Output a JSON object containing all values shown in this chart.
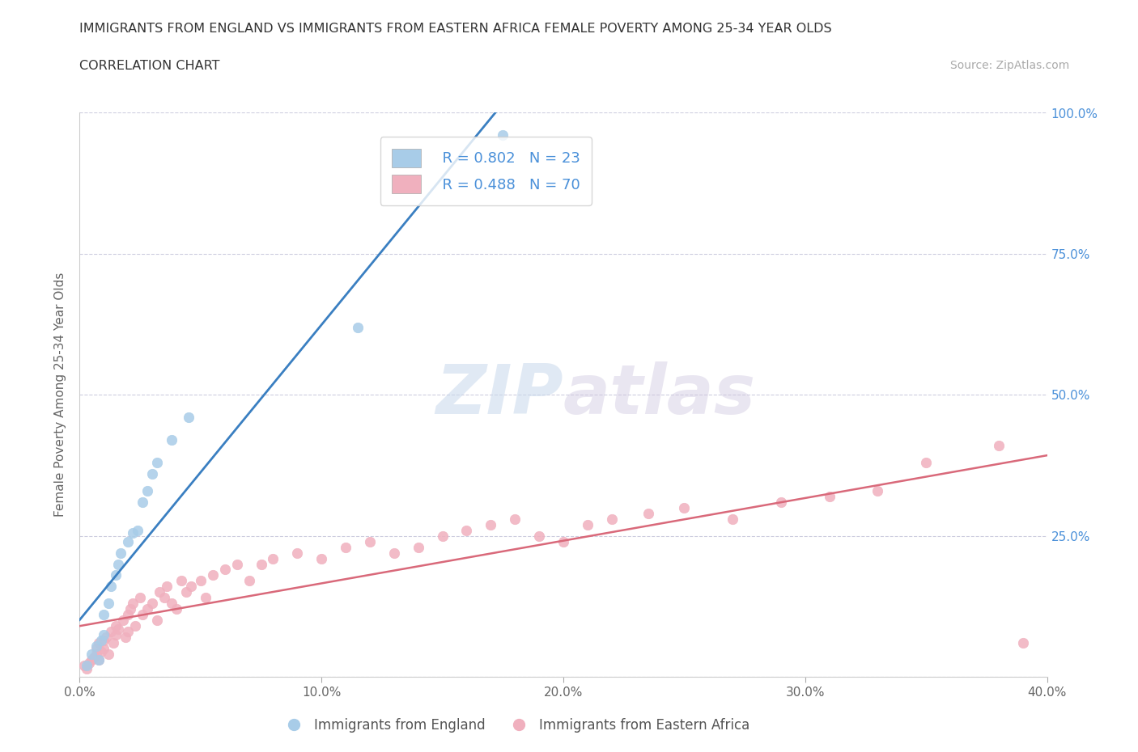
{
  "title_line1": "IMMIGRANTS FROM ENGLAND VS IMMIGRANTS FROM EASTERN AFRICA FEMALE POVERTY AMONG 25-34 YEAR OLDS",
  "title_line2": "CORRELATION CHART",
  "source_text": "Source: ZipAtlas.com",
  "ylabel": "Female Poverty Among 25-34 Year Olds",
  "xlim": [
    0.0,
    0.4
  ],
  "ylim": [
    0.0,
    1.0
  ],
  "xticks": [
    0.0,
    0.1,
    0.2,
    0.3,
    0.4
  ],
  "yticks": [
    0.0,
    0.25,
    0.5,
    0.75,
    1.0
  ],
  "england_color": "#a8cce8",
  "eastern_africa_color": "#f0b0be",
  "england_R": 0.802,
  "england_N": 23,
  "eastern_africa_R": 0.488,
  "eastern_africa_N": 70,
  "england_line_color": "#3a7fc1",
  "eastern_africa_line_color": "#d9697a",
  "right_axis_color": "#4a90d9",
  "watermark_color": "#d8e8f5",
  "background_color": "#ffffff",
  "grid_color": "#c8c8dc",
  "england_scatter_x": [
    0.003,
    0.005,
    0.007,
    0.008,
    0.009,
    0.01,
    0.01,
    0.012,
    0.013,
    0.015,
    0.016,
    0.017,
    0.02,
    0.022,
    0.024,
    0.026,
    0.028,
    0.03,
    0.032,
    0.038,
    0.045,
    0.115,
    0.175
  ],
  "england_scatter_y": [
    0.02,
    0.04,
    0.055,
    0.03,
    0.065,
    0.075,
    0.11,
    0.13,
    0.16,
    0.18,
    0.2,
    0.22,
    0.24,
    0.255,
    0.26,
    0.31,
    0.33,
    0.36,
    0.38,
    0.42,
    0.46,
    0.62,
    0.96
  ],
  "eastern_africa_scatter_x": [
    0.002,
    0.003,
    0.004,
    0.005,
    0.006,
    0.007,
    0.007,
    0.008,
    0.008,
    0.009,
    0.01,
    0.01,
    0.011,
    0.012,
    0.013,
    0.014,
    0.015,
    0.015,
    0.016,
    0.018,
    0.019,
    0.02,
    0.02,
    0.021,
    0.022,
    0.023,
    0.025,
    0.026,
    0.028,
    0.03,
    0.032,
    0.033,
    0.035,
    0.036,
    0.038,
    0.04,
    0.042,
    0.044,
    0.046,
    0.05,
    0.052,
    0.055,
    0.06,
    0.065,
    0.07,
    0.075,
    0.08,
    0.09,
    0.1,
    0.11,
    0.12,
    0.13,
    0.14,
    0.15,
    0.16,
    0.17,
    0.18,
    0.19,
    0.2,
    0.21,
    0.22,
    0.235,
    0.25,
    0.27,
    0.29,
    0.31,
    0.33,
    0.35,
    0.38,
    0.39
  ],
  "eastern_africa_scatter_y": [
    0.02,
    0.015,
    0.025,
    0.03,
    0.035,
    0.04,
    0.05,
    0.03,
    0.06,
    0.045,
    0.05,
    0.065,
    0.07,
    0.04,
    0.08,
    0.06,
    0.075,
    0.09,
    0.085,
    0.1,
    0.07,
    0.11,
    0.08,
    0.12,
    0.13,
    0.09,
    0.14,
    0.11,
    0.12,
    0.13,
    0.1,
    0.15,
    0.14,
    0.16,
    0.13,
    0.12,
    0.17,
    0.15,
    0.16,
    0.17,
    0.14,
    0.18,
    0.19,
    0.2,
    0.17,
    0.2,
    0.21,
    0.22,
    0.21,
    0.23,
    0.24,
    0.22,
    0.23,
    0.25,
    0.26,
    0.27,
    0.28,
    0.25,
    0.24,
    0.27,
    0.28,
    0.29,
    0.3,
    0.28,
    0.31,
    0.32,
    0.33,
    0.38,
    0.41,
    0.06
  ]
}
